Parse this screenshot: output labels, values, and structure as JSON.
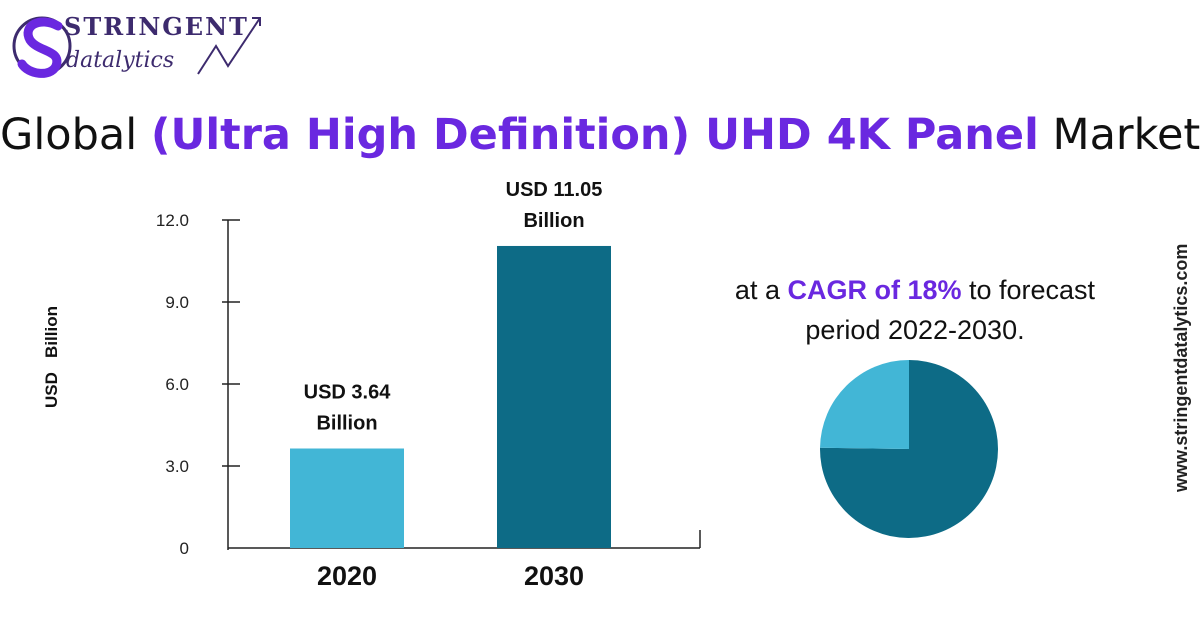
{
  "brand": {
    "logo_top": "STRINGENT",
    "logo_bottom": "datalytics",
    "website": "www.stringentdatalytics.com",
    "colors": {
      "purple": "#6a28e0",
      "navy": "#3d2b6e"
    }
  },
  "title": {
    "pre": "Global ",
    "highlight": "(Ultra High Definition) UHD 4K Panel",
    "post": " Market"
  },
  "cagr": {
    "pre": "at a ",
    "highlight": "CAGR of 18%",
    "post": " to forecast period 2022-2030."
  },
  "chart_data": [
    {
      "type": "bar",
      "categories": [
        "2020",
        "2030"
      ],
      "values": [
        3.64,
        11.05
      ],
      "value_labels": [
        [
          "USD 3.64",
          "Billion"
        ],
        [
          "USD 11.05",
          "Billion"
        ]
      ],
      "ylabel": "USD   Billion",
      "yticks": [
        "0",
        "3.0",
        "6.0",
        "9.0",
        "12.0"
      ],
      "ylim": [
        0,
        12
      ],
      "grid": false,
      "colors": [
        "#42b6d6",
        "#0d6b86"
      ]
    },
    {
      "type": "pie",
      "values": [
        3.64,
        11.05
      ],
      "colors": [
        "#42b6d6",
        "#0d6b86"
      ]
    }
  ]
}
